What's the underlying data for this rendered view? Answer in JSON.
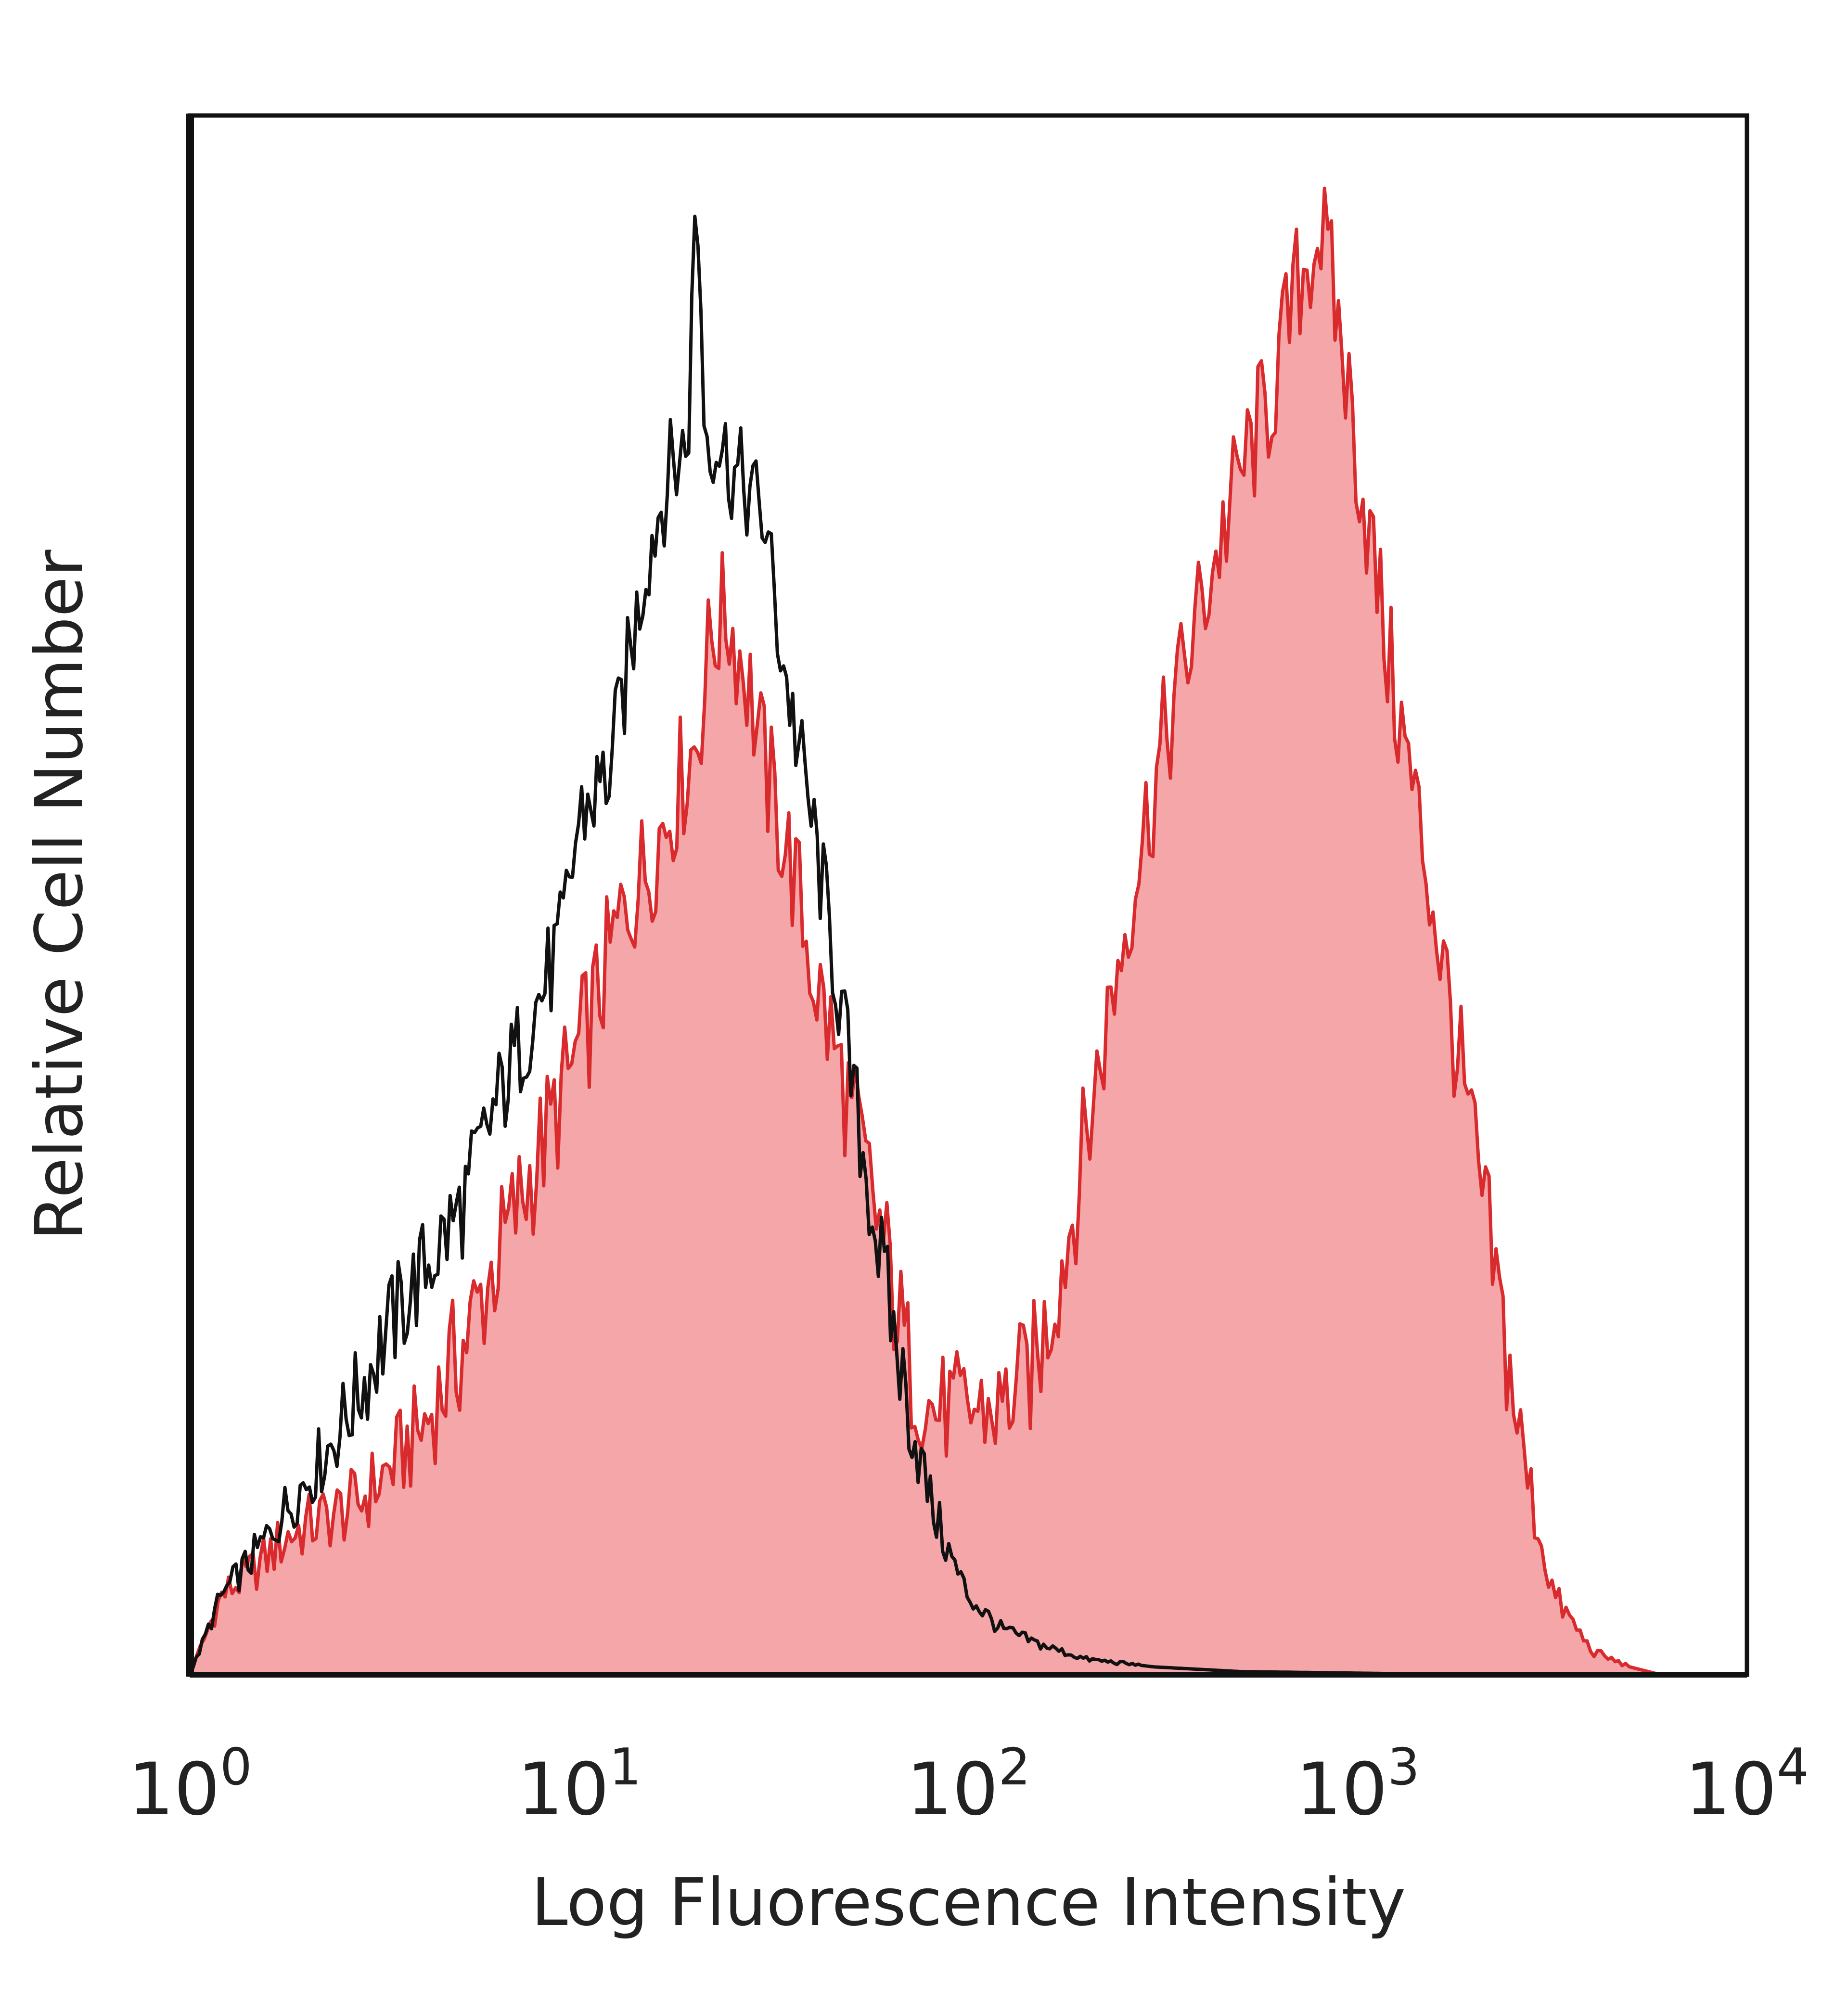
{
  "chart_data": {
    "type": "area",
    "title": "",
    "xlabel": "Log Fluorescence Intensity",
    "ylabel": "Relative Cell Number",
    "xscale": "log",
    "xlim": [
      1,
      10000
    ],
    "ylim": [
      0,
      100
    ],
    "grid": false,
    "legend": "none",
    "x_ticks": [
      {
        "value": 1,
        "base": "10",
        "exp": "0"
      },
      {
        "value": 10,
        "base": "10",
        "exp": "1"
      },
      {
        "value": 100,
        "base": "10",
        "exp": "2"
      },
      {
        "value": 1000,
        "base": "10",
        "exp": "3"
      },
      {
        "value": 10000,
        "base": "10",
        "exp": "4"
      }
    ],
    "series": [
      {
        "style": "filled",
        "color": "#f4a6a8",
        "edge_color": "#d92b2e",
        "x": [
          1.0,
          1.2,
          1.5,
          1.8,
          2.2,
          2.7,
          3.2,
          4.0,
          5.0,
          6.0,
          7.5,
          9.0,
          11,
          13,
          15,
          18,
          20,
          22,
          24,
          27,
          30,
          35,
          40,
          50,
          60,
          70,
          80,
          100,
          120,
          150,
          180,
          220,
          270,
          320,
          400,
          500,
          600,
          700,
          800,
          900,
          1000,
          1200,
          1500,
          1800,
          2200,
          2700,
          3200,
          4000,
          5000,
          6000
        ],
        "y": [
          0,
          5,
          7,
          9,
          10,
          11,
          13,
          16,
          21,
          26,
          32,
          37,
          43,
          49,
          52,
          57,
          60,
          67,
          68,
          64,
          58,
          52,
          45,
          36,
          28,
          20,
          17,
          17,
          17,
          20,
          28,
          40,
          52,
          60,
          69,
          77,
          82,
          89,
          93,
          86,
          78,
          65,
          52,
          40,
          27,
          13,
          5,
          1.5,
          0.5,
          0
        ]
      },
      {
        "style": "outline",
        "color": "#111111",
        "x": [
          1.0,
          1.2,
          1.5,
          1.8,
          2.2,
          2.7,
          3.2,
          4.0,
          5.0,
          6.0,
          7.5,
          9.0,
          10,
          12,
          13,
          15,
          17,
          19,
          20,
          21,
          23,
          25,
          27,
          30,
          32,
          35,
          40,
          45,
          50,
          60,
          70,
          80,
          90,
          100,
          120,
          150,
          200,
          300,
          500,
          1000,
          2000
        ],
        "y": [
          0,
          5,
          8,
          11,
          14,
          18,
          22,
          26,
          30,
          36,
          42,
          47,
          55,
          58,
          63,
          72,
          77,
          79,
          96,
          80,
          79,
          77,
          76,
          74,
          68,
          62,
          54,
          46,
          38,
          26,
          17,
          11,
          7.5,
          5,
          3,
          2,
          1,
          0.5,
          0.2,
          0.1,
          0
        ]
      }
    ]
  }
}
